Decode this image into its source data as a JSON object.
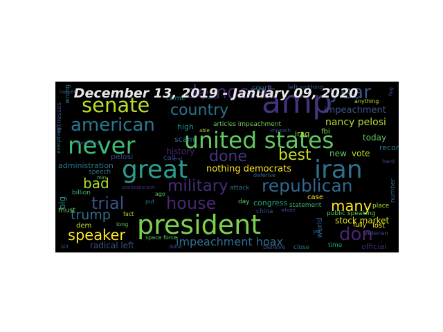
{
  "title": "December 13, 2019 - January 09, 2020",
  "words": [
    {
      "text": "amp",
      "color": "#46327e"
    },
    {
      "text": "year",
      "color": "#3b528b"
    },
    {
      "text": "democrat",
      "color": "#482677"
    },
    {
      "text": "senate",
      "color": "#b8de29"
    },
    {
      "text": "country",
      "color": "#2c728e"
    },
    {
      "text": "american",
      "color": "#2a788e"
    },
    {
      "text": "never",
      "color": "#3fbc73"
    },
    {
      "text": "united states",
      "color": "#5ec962"
    },
    {
      "text": "best",
      "color": "#c2df23"
    },
    {
      "text": "done",
      "color": "#46337e"
    },
    {
      "text": "great",
      "color": "#2a9d8f"
    },
    {
      "text": "iran",
      "color": "#2c728e"
    },
    {
      "text": "military",
      "color": "#472d7b"
    },
    {
      "text": "republican",
      "color": "#31688e"
    },
    {
      "text": "bad",
      "color": "#b5de2b"
    },
    {
      "text": "trial",
      "color": "#3b528b"
    },
    {
      "text": "house",
      "color": "#482878"
    },
    {
      "text": "many",
      "color": "#fde725"
    },
    {
      "text": "trump",
      "color": "#2d708e"
    },
    {
      "text": "president",
      "color": "#7ad151"
    },
    {
      "text": "don",
      "color": "#482475"
    },
    {
      "text": "speaker",
      "color": "#fde725"
    },
    {
      "text": "impeachment hoax",
      "color": "#2e6e8e"
    },
    {
      "text": "impeachment",
      "color": "#3a548c"
    },
    {
      "text": "nancy pelosi",
      "color": "#b8de29"
    },
    {
      "text": "today",
      "color": "#5ec962"
    },
    {
      "text": "nothing democrats",
      "color": "#fde725"
    },
    {
      "text": "history",
      "color": "#482677"
    },
    {
      "text": "pelosi",
      "color": "#3e4a89"
    },
    {
      "text": "administration",
      "color": "#2a788e"
    },
    {
      "text": "stock market",
      "color": "#dce319"
    },
    {
      "text": "radical left",
      "color": "#3b528b"
    },
    {
      "text": "high",
      "color": "#21918c"
    },
    {
      "text": "scam",
      "color": "#2c728e"
    },
    {
      "text": "new",
      "color": "#5ec962"
    },
    {
      "text": "vote",
      "color": "#b5de2b"
    },
    {
      "text": "record",
      "color": "#2a788e"
    },
    {
      "text": "iraq",
      "color": "#aadc32"
    },
    {
      "text": "world",
      "color": "#355f8d"
    },
    {
      "text": "congress",
      "color": "#22a884"
    },
    {
      "text": "official",
      "color": "#482878"
    },
    {
      "text": "case",
      "color": "#fde725"
    },
    {
      "text": "must",
      "color": "#6ece58"
    },
    {
      "text": "big",
      "color": "#2a9d8f"
    },
    {
      "text": "court",
      "color": "#2c728e"
    },
    {
      "text": "crime",
      "color": "#21918c"
    },
    {
      "text": "fbi",
      "color": "#86d549"
    },
    {
      "text": "call",
      "color": "#3e4a89"
    },
    {
      "text": "dem",
      "color": "#b5de2b"
    },
    {
      "text": "lost",
      "color": "#fde725"
    },
    {
      "text": "speech",
      "color": "#2a788e"
    },
    {
      "text": "billion",
      "color": "#3fbc73"
    },
    {
      "text": "public speaking",
      "color": "#5ec962"
    },
    {
      "text": "articles impeachment",
      "color": "#6ece58"
    },
    {
      "text": "left nothing",
      "color": "#3b528b"
    },
    {
      "text": "witnesses",
      "color": "#3b528b"
    },
    {
      "text": "number",
      "color": "#31688e"
    },
    {
      "text": "time",
      "color": "#22a884"
    },
    {
      "text": "believe",
      "color": "#3b528b"
    },
    {
      "text": "close",
      "color": "#2a788e"
    },
    {
      "text": "day",
      "color": "#5ec962"
    },
    {
      "text": "statement",
      "color": "#3fbc73"
    },
    {
      "text": "attack",
      "color": "#2a788e"
    },
    {
      "text": "fully",
      "color": "#fde725"
    },
    {
      "text": "veteran",
      "color": "#3e4a89"
    },
    {
      "text": "place",
      "color": "#b8de29"
    },
    {
      "text": "china",
      "color": "#3b528b"
    },
    {
      "text": "wrong",
      "color": "#2a788e"
    },
    {
      "text": "hard",
      "color": "#3e4a89"
    },
    {
      "text": "anything",
      "color": "#b8de29"
    },
    {
      "text": "long",
      "color": "#5ec962"
    },
    {
      "text": "defense",
      "color": "#31688e"
    },
    {
      "text": "fact",
      "color": "#b5de2b"
    },
    {
      "text": "space force",
      "color": "#5ec962"
    },
    {
      "text": "put",
      "color": "#2a788e"
    },
    {
      "text": "ago",
      "color": "#5ec962"
    },
    {
      "text": "homeless",
      "color": "#3b528b"
    },
    {
      "text": "phase",
      "color": "#2c728e"
    },
    {
      "text": "whole",
      "color": "#3e4a89"
    },
    {
      "text": "able",
      "color": "#b8de29"
    },
    {
      "text": "flag",
      "color": "#3b528b"
    },
    {
      "text": "impeach",
      "color": "#3b528b"
    },
    {
      "text": "lawyer",
      "color": "#3b528b"
    },
    {
      "text": "bill",
      "color": "#3b528b"
    },
    {
      "text": "yet",
      "color": "#2a788e"
    },
    {
      "text": "end",
      "color": "#3b528b"
    },
    {
      "text": "everything",
      "color": "#2c728e"
    },
    {
      "text": "dollar",
      "color": "#3b528b"
    },
    {
      "text": "min",
      "color": "#5ec962"
    },
    {
      "text": "spokesperson",
      "color": "#46327e"
    }
  ]
}
